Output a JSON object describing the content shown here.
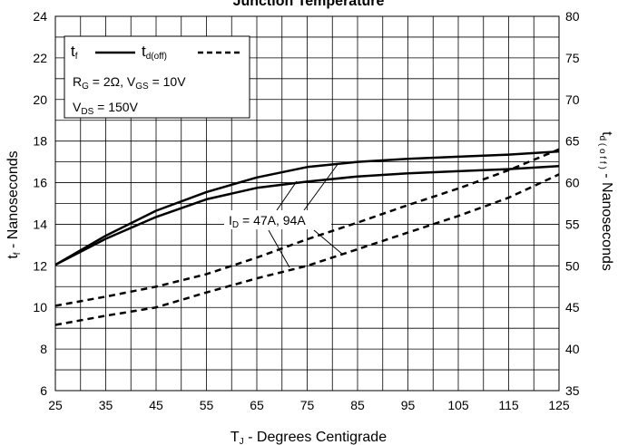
{
  "chart_data": {
    "type": "line",
    "title": "Junction Temperature",
    "xlabel": {
      "main": "T",
      "sub": "J",
      "rest": " - Degrees Centigrade"
    },
    "ylabel_left": {
      "main": "t",
      "sub": "f",
      "rest": " - Nanoseconds"
    },
    "ylabel_right": {
      "main": "t",
      "sub": "d ( o f f )",
      "rest": " - Nanoseconds"
    },
    "xlim": [
      25,
      125
    ],
    "ylim_left": [
      6,
      24
    ],
    "ylim_right": [
      35,
      80
    ],
    "grid": true,
    "x_ticks": [
      "25",
      "35",
      "45",
      "55",
      "65",
      "75",
      "85",
      "95",
      "105",
      "115",
      "125"
    ],
    "y_left_ticks": [
      "6",
      "8",
      "10",
      "12",
      "14",
      "16",
      "18",
      "20",
      "22",
      "24"
    ],
    "y_right_ticks": [
      "35",
      "40",
      "45",
      "50",
      "55",
      "60",
      "65",
      "70",
      "75",
      "80"
    ],
    "legend": {
      "placement": "top-left",
      "tf": {
        "main": "t",
        "sub": "f"
      },
      "tdoff": {
        "main": "t",
        "sub": "d(off)"
      },
      "cond1": {
        "r": "R",
        "r_sub": "G",
        "r_val": " = 2Ω,  V",
        "v_sub": "GS",
        "v_val": " = 10V"
      },
      "cond2": {
        "v": "V",
        "v_sub": "DS",
        "v_val": " = 150V"
      }
    },
    "annotation": {
      "main": "I",
      "sub": "D",
      "rest": " = 47A, 94A"
    },
    "series": [
      {
        "key": "tf_upper",
        "style": "solid",
        "axis": "left",
        "x": [
          25,
          35,
          45,
          55,
          65,
          75,
          85,
          95,
          105,
          115,
          125
        ],
        "values": [
          12.05,
          13.45,
          14.65,
          15.55,
          16.25,
          16.75,
          17.0,
          17.15,
          17.25,
          17.35,
          17.5
        ]
      },
      {
        "key": "tf_lower",
        "style": "solid",
        "axis": "left",
        "x": [
          25,
          35,
          45,
          55,
          65,
          75,
          85,
          95,
          105,
          115,
          125
        ],
        "values": [
          12.05,
          13.3,
          14.35,
          15.2,
          15.75,
          16.05,
          16.3,
          16.45,
          16.55,
          16.65,
          16.8
        ]
      },
      {
        "key": "tdoff_upper",
        "style": "dashed",
        "axis": "right",
        "x": [
          25,
          35,
          45,
          55,
          65,
          75,
          85,
          95,
          105,
          115,
          125
        ],
        "values": [
          45.2,
          46.3,
          47.5,
          49.0,
          51.0,
          53.2,
          55.2,
          57.3,
          59.3,
          61.5,
          64.0
        ]
      },
      {
        "key": "tdoff_lower",
        "style": "dashed",
        "axis": "right",
        "x": [
          25,
          35,
          45,
          55,
          65,
          75,
          85,
          95,
          105,
          115,
          125
        ],
        "values": [
          42.9,
          44.0,
          45.0,
          46.8,
          48.5,
          50.0,
          52.0,
          54.0,
          56.0,
          58.2,
          61.0
        ]
      }
    ]
  }
}
